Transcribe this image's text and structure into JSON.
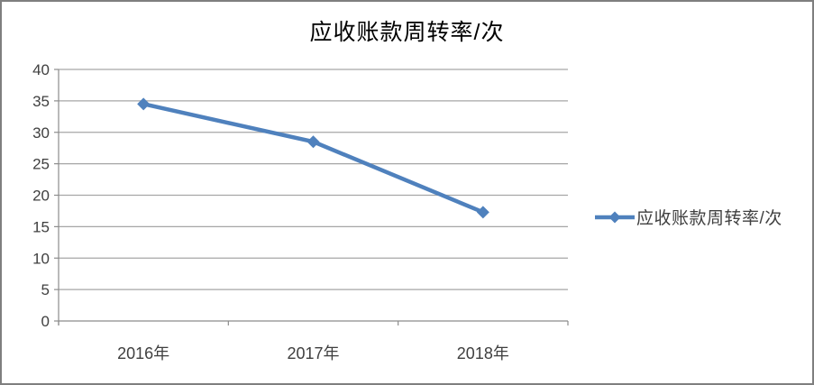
{
  "chart_data": {
    "type": "line",
    "title": "应收账款周转率/次",
    "categories": [
      "2016年",
      "2017年",
      "2018年"
    ],
    "series": [
      {
        "name": "应收账款周转率/次",
        "values": [
          34.5,
          28.5,
          17.3
        ]
      }
    ],
    "ylim": [
      0,
      40
    ],
    "ytick_step": 5,
    "yticks": [
      0,
      5,
      10,
      15,
      20,
      25,
      30,
      35,
      40
    ],
    "xlabel": "",
    "ylabel": "",
    "grid": true,
    "legend_position": "right",
    "marker": "diamond",
    "colors": {
      "series": "#4F81BD",
      "gridline": "#A6A6A6",
      "axis": "#8C8C8C",
      "axis_text": "#3F3F3F",
      "title_text": "#000000",
      "frame_border": "#7F7F7F",
      "background": "#FFFFFF"
    }
  }
}
